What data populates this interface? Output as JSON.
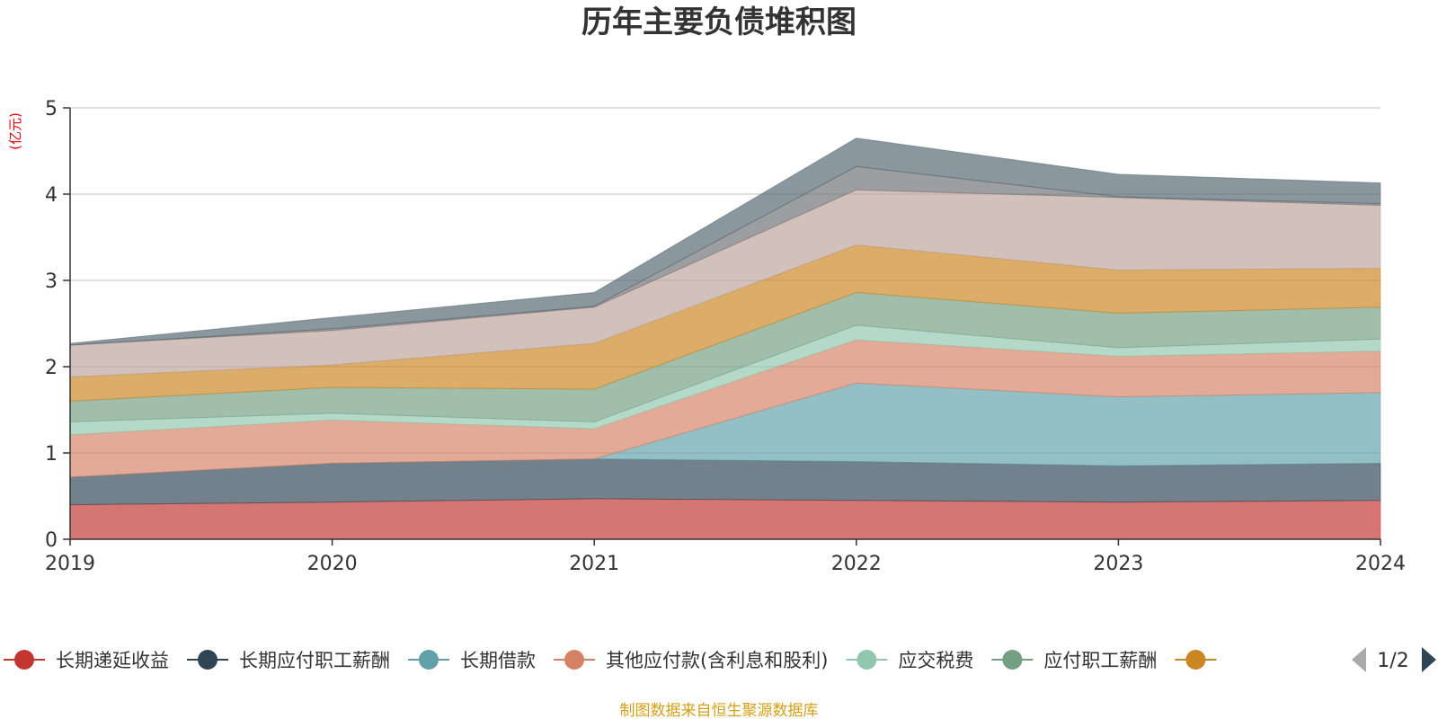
{
  "chart_data": {
    "type": "area",
    "stacked": true,
    "title": "历年主要负债堆积图",
    "unit_label": "(亿元)",
    "x": [
      "2019",
      "2020",
      "2021",
      "2022",
      "2023",
      "2024"
    ],
    "ylim": [
      0,
      5
    ],
    "yticks": [
      "0",
      "1",
      "2",
      "3",
      "4",
      "5"
    ],
    "grid": true,
    "series": [
      {
        "name": "长期递延收益",
        "color": "#c23531",
        "values": [
          0.4,
          0.43,
          0.47,
          0.45,
          0.43,
          0.45
        ]
      },
      {
        "name": "长期应付职工薪酬",
        "color": "#2f4554",
        "values": [
          0.32,
          0.45,
          0.46,
          0.45,
          0.42,
          0.43
        ]
      },
      {
        "name": "长期借款",
        "color": "#61a0a8",
        "values": [
          0.0,
          0.0,
          0.0,
          0.91,
          0.8,
          0.82
        ]
      },
      {
        "name": "其他应付款(含利息和股利)",
        "color": "#d48265",
        "values": [
          0.49,
          0.5,
          0.35,
          0.5,
          0.47,
          0.48
        ]
      },
      {
        "name": "应交税费",
        "color": "#91c7ae",
        "values": [
          0.15,
          0.08,
          0.08,
          0.17,
          0.1,
          0.14
        ]
      },
      {
        "name": "应付职工薪酬",
        "color": "#749f83",
        "values": [
          0.24,
          0.3,
          0.38,
          0.38,
          0.4,
          0.37
        ]
      },
      {
        "name": "",
        "color": "#ca8622",
        "values": [
          0.28,
          0.26,
          0.53,
          0.55,
          0.5,
          0.45
        ]
      },
      {
        "name": "",
        "color": "#bda29a",
        "values": [
          0.37,
          0.4,
          0.42,
          0.64,
          0.84,
          0.73
        ]
      },
      {
        "name": "",
        "color": "#6e7074",
        "values": [
          0.0,
          0.02,
          0.01,
          0.27,
          0.01,
          0.02
        ]
      },
      {
        "name": "",
        "color": "#546570",
        "values": [
          0.02,
          0.13,
          0.16,
          0.33,
          0.26,
          0.24
        ]
      }
    ],
    "legend": {
      "placement": "bottom",
      "page": "1/2",
      "items": [
        {
          "label": "长期递延收益",
          "color": "#c23531"
        },
        {
          "label": "长期应付职工薪酬",
          "color": "#2f4554"
        },
        {
          "label": "长期借款",
          "color": "#61a0a8"
        },
        {
          "label": "其他应付款(含利息和股利)",
          "color": "#d48265"
        },
        {
          "label": "应交税费",
          "color": "#91c7ae"
        },
        {
          "label": "应付职工薪酬",
          "color": "#749f83"
        },
        {
          "label": "",
          "color": "#ca8622"
        }
      ]
    },
    "source": "制图数据来自恒生聚源数据库"
  }
}
